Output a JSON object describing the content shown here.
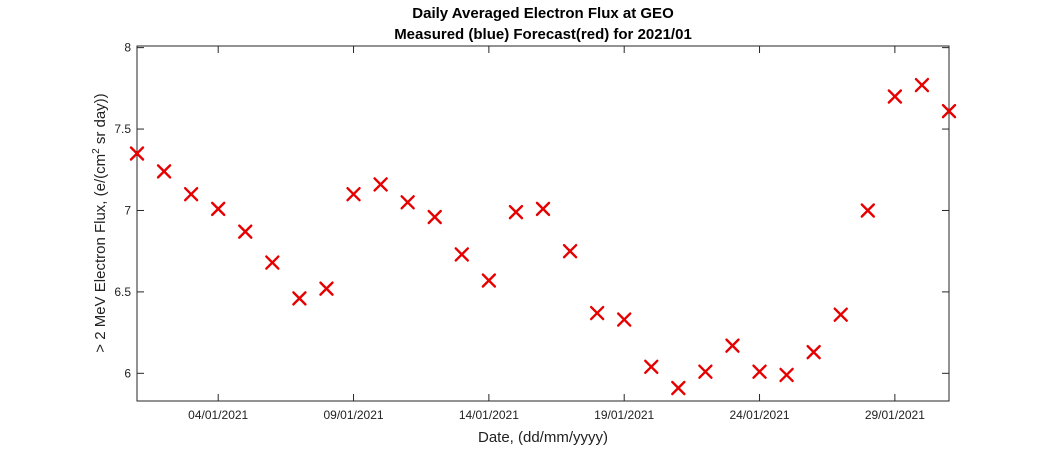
{
  "chart_data": {
    "type": "scatter",
    "title": "Daily Averaged Electron Flux at GEO",
    "subtitle": "Measured (blue) Forecast(red) for 2021/01",
    "xlabel": "Date, (dd/mm/yyyy)",
    "ylabel_prefix": "> 2 MeV Electron Flux, (e/(cm",
    "ylabel_sup": "2",
    "ylabel_suffix": " sr day))",
    "x_tick_labels": [
      "04/01/2021",
      "09/01/2021",
      "14/01/2021",
      "19/01/2021",
      "24/01/2021",
      "29/01/2021"
    ],
    "x_tick_dates": [
      "2021-01-04",
      "2021-01-09",
      "2021-01-14",
      "2021-01-19",
      "2021-01-24",
      "2021-01-29"
    ],
    "xlim": [
      "2021-01-01",
      "2021-01-31"
    ],
    "y_ticks": [
      6,
      6.5,
      7,
      7.5,
      8
    ],
    "y_tick_labels": [
      "6",
      "6.5",
      "7",
      "7.5",
      "8"
    ],
    "ylim": [
      5.83,
      8.01
    ],
    "grid": false,
    "marker": "x",
    "series": [
      {
        "color": "#e60000",
        "points": [
          {
            "x": "2021-01-01",
            "y": 7.35
          },
          {
            "x": "2021-01-02",
            "y": 7.24
          },
          {
            "x": "2021-01-03",
            "y": 7.1
          },
          {
            "x": "2021-01-04",
            "y": 7.01
          },
          {
            "x": "2021-01-05",
            "y": 6.87
          },
          {
            "x": "2021-01-06",
            "y": 6.68
          },
          {
            "x": "2021-01-07",
            "y": 6.46
          },
          {
            "x": "2021-01-08",
            "y": 6.52
          },
          {
            "x": "2021-01-09",
            "y": 7.1
          },
          {
            "x": "2021-01-10",
            "y": 7.16
          },
          {
            "x": "2021-01-11",
            "y": 7.05
          },
          {
            "x": "2021-01-12",
            "y": 6.96
          },
          {
            "x": "2021-01-13",
            "y": 6.73
          },
          {
            "x": "2021-01-14",
            "y": 6.57
          },
          {
            "x": "2021-01-15",
            "y": 6.99
          },
          {
            "x": "2021-01-16",
            "y": 7.01
          },
          {
            "x": "2021-01-17",
            "y": 6.75
          },
          {
            "x": "2021-01-18",
            "y": 6.37
          },
          {
            "x": "2021-01-19",
            "y": 6.33
          },
          {
            "x": "2021-01-20",
            "y": 6.04
          },
          {
            "x": "2021-01-21",
            "y": 5.91
          },
          {
            "x": "2021-01-22",
            "y": 6.01
          },
          {
            "x": "2021-01-23",
            "y": 6.17
          },
          {
            "x": "2021-01-24",
            "y": 6.01
          },
          {
            "x": "2021-01-25",
            "y": 5.99
          },
          {
            "x": "2021-01-26",
            "y": 6.13
          },
          {
            "x": "2021-01-27",
            "y": 6.36
          },
          {
            "x": "2021-01-28",
            "y": 7.0
          },
          {
            "x": "2021-01-29",
            "y": 7.7
          },
          {
            "x": "2021-01-30",
            "y": 7.77
          },
          {
            "x": "2021-01-31",
            "y": 7.61
          }
        ]
      }
    ]
  }
}
